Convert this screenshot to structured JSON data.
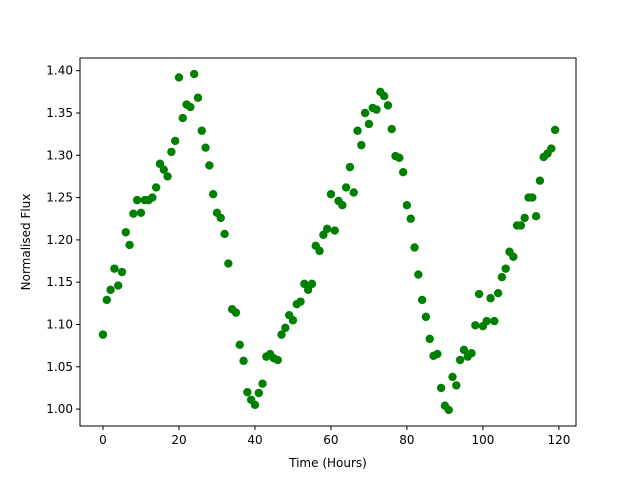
{
  "chart_data": {
    "type": "scatter",
    "x_label": "Time (Hours)",
    "y_label": "Normalised Flux",
    "xlim": [
      -6.05,
      124.5
    ],
    "ylim": [
      0.98,
      1.415
    ],
    "xticks": [
      0,
      20,
      40,
      60,
      80,
      100,
      120
    ],
    "yticks": [
      {
        "value": 1.0,
        "label": "1.00"
      },
      {
        "value": 1.05,
        "label": "1.05"
      },
      {
        "value": 1.1,
        "label": "1.10"
      },
      {
        "value": 1.15,
        "label": "1.15"
      },
      {
        "value": 1.2,
        "label": "1.20"
      },
      {
        "value": 1.25,
        "label": "1.25"
      },
      {
        "value": 1.3,
        "label": "1.30"
      },
      {
        "value": 1.35,
        "label": "1.35"
      },
      {
        "value": 1.4,
        "label": "1.40"
      }
    ],
    "grid": false,
    "series": [
      {
        "color": "#008000",
        "x": [
          0,
          1,
          2,
          3,
          4,
          5,
          6,
          7,
          8,
          9,
          10,
          11,
          12,
          13,
          14,
          15,
          16,
          17,
          18,
          19,
          20,
          21,
          22,
          23,
          24,
          25,
          26,
          27,
          28,
          29,
          30,
          31,
          32,
          33,
          34,
          35,
          36,
          37,
          38,
          39,
          40,
          41,
          42,
          43,
          44,
          45,
          46,
          47,
          48,
          49,
          50,
          51,
          52,
          53,
          54,
          55,
          56,
          57,
          58,
          59,
          60,
          61,
          62,
          63,
          64,
          65,
          66,
          67,
          68,
          69,
          70,
          71,
          72,
          73,
          74,
          75,
          76,
          77,
          78,
          79,
          80,
          81,
          82,
          83,
          84,
          85,
          86,
          87,
          88,
          89,
          90,
          91,
          92,
          93,
          94,
          95,
          96,
          97,
          98,
          99,
          100,
          101,
          102,
          103,
          104,
          105,
          106,
          107,
          108,
          109,
          110,
          111,
          112,
          113,
          114,
          115,
          116,
          117,
          118,
          119
        ],
        "values": [
          1.088,
          1.129,
          1.141,
          1.166,
          1.146,
          1.162,
          1.209,
          1.194,
          1.231,
          1.247,
          1.232,
          1.247,
          1.247,
          1.25,
          1.262,
          1.29,
          1.283,
          1.275,
          1.304,
          1.317,
          1.392,
          1.344,
          1.36,
          1.357,
          1.396,
          1.368,
          1.329,
          1.309,
          1.288,
          1.254,
          1.232,
          1.226,
          1.207,
          1.172,
          1.118,
          1.114,
          1.076,
          1.057,
          1.02,
          1.011,
          1.005,
          1.019,
          1.03,
          1.062,
          1.065,
          1.06,
          1.058,
          1.088,
          1.096,
          1.111,
          1.105,
          1.124,
          1.127,
          1.148,
          1.141,
          1.148,
          1.193,
          1.187,
          1.206,
          1.213,
          1.254,
          1.211,
          1.246,
          1.241,
          1.262,
          1.286,
          1.256,
          1.329,
          1.312,
          1.35,
          1.337,
          1.356,
          1.354,
          1.375,
          1.37,
          1.359,
          1.331,
          1.299,
          1.297,
          1.28,
          1.241,
          1.225,
          1.191,
          1.159,
          1.129,
          1.109,
          1.083,
          1.063,
          1.065,
          1.025,
          1.004,
          0.999,
          1.038,
          1.028,
          1.058,
          1.07,
          1.062,
          1.066,
          1.099,
          1.136,
          1.098,
          1.104,
          1.131,
          1.104,
          1.137,
          1.156,
          1.166,
          1.186,
          1.18,
          1.217,
          1.217,
          1.226,
          1.25,
          1.25,
          1.228,
          1.27,
          1.298,
          1.302,
          1.308,
          1.33
        ]
      }
    ]
  }
}
